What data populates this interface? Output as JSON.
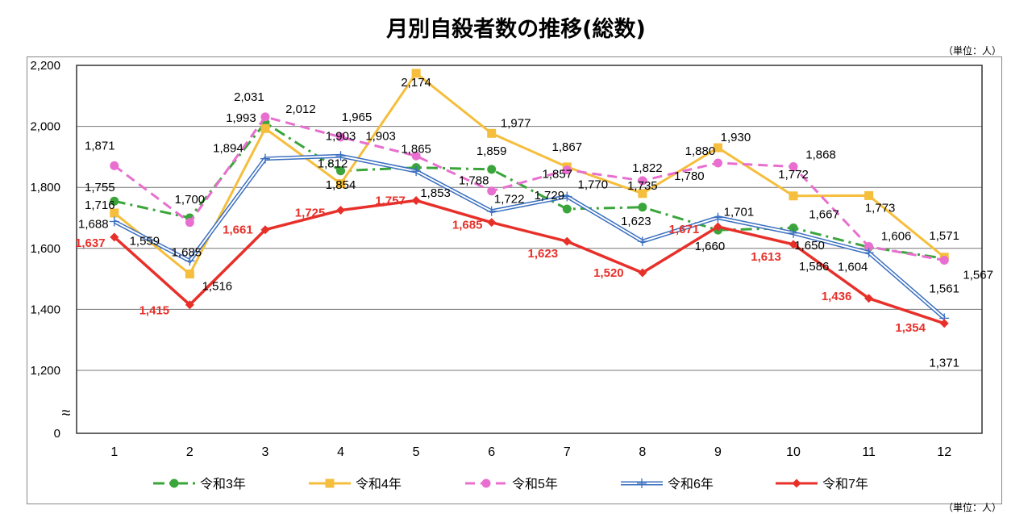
{
  "chart_data": {
    "type": "line",
    "title": "月別自殺者数の推移(総数)",
    "unit_label": "（単位：人）",
    "categories": [
      "1",
      "2",
      "3",
      "4",
      "5",
      "6",
      "7",
      "8",
      "9",
      "10",
      "11",
      "12"
    ],
    "yticks": [
      "0",
      "1,200",
      "1,400",
      "1,600",
      "1,800",
      "2,000",
      "2,200"
    ],
    "ylim": [
      1200,
      2200
    ],
    "axis_break": true,
    "grid": true,
    "legend": "bottom",
    "series": [
      {
        "name": "令和3年",
        "color": "#3aa53a",
        "style": "dashdot",
        "marker": "circle",
        "values": [
          1755,
          1700,
          2012,
          1854,
          1865,
          1859,
          1729,
          1735,
          1660,
          1667,
          1604,
          1567
        ]
      },
      {
        "name": "令和4年",
        "color": "#f5be3c",
        "style": "solid",
        "marker": "square",
        "values": [
          1716,
          1516,
          1993,
          1812,
          2174,
          1977,
          1867,
          1780,
          1930,
          1772,
          1773,
          1571
        ]
      },
      {
        "name": "令和5年",
        "color": "#e86fcf",
        "style": "dashed",
        "marker": "circle",
        "values": [
          1871,
          1685,
          2031,
          1965,
          1903,
          1788,
          1857,
          1822,
          1880,
          1868,
          1606,
          1561
        ]
      },
      {
        "name": "令和6年",
        "color": "#3a6fc0",
        "style": "double",
        "marker": "plus",
        "values": [
          1688,
          1559,
          1894,
          1903,
          1853,
          1722,
          1770,
          1623,
          1701,
          1650,
          1586,
          1371
        ]
      },
      {
        "name": "令和7年",
        "color": "#e8302a",
        "style": "solid",
        "marker": "diamond",
        "values": [
          1637,
          1415,
          1661,
          1725,
          1757,
          1685,
          1623,
          1520,
          1671,
          1613,
          1436,
          1354
        ]
      }
    ]
  }
}
